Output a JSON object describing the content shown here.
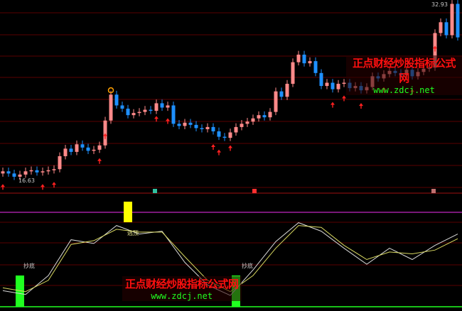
{
  "colors": {
    "up": "#ff8a8a",
    "down": "#1e90ff",
    "grid": "#5a0000",
    "separator": "#a01010",
    "purple": "#a020a0",
    "green": "#20ff20",
    "yellow": "#ffff00",
    "line_white": "#d8d8d8",
    "line_yellow": "#d8d860",
    "arrow": "#ff2020"
  },
  "watermark": {
    "title": "正点财经炒股指标公式网",
    "url": "www.zdcj.net"
  },
  "chart_data": [
    {
      "type": "candlestick",
      "price_labels": {
        "high": "32.93",
        "low": "16.63"
      },
      "ylim": [
        16.63,
        32.93
      ],
      "closes": [
        17.4,
        17.2,
        16.9,
        17.1,
        17.4,
        17.5,
        17.3,
        17.4,
        17.5,
        17.6,
        18.8,
        19.5,
        19.2,
        19.9,
        19.6,
        19.3,
        19.4,
        19.8,
        22.1,
        24.5,
        23.5,
        23.2,
        22.6,
        22.8,
        22.9,
        23.1,
        23.0,
        23.7,
        23.3,
        23.5,
        21.8,
        21.6,
        21.9,
        21.7,
        21.4,
        21.3,
        21.5,
        21.1,
        20.6,
        20.5,
        21.0,
        21.5,
        21.8,
        22.0,
        22.3,
        22.6,
        22.4,
        22.9,
        24.8,
        24.3,
        25.5,
        27.5,
        28.2,
        27.4,
        27.6,
        26.5,
        25.3,
        25.6,
        25.0,
        25.5,
        25.6,
        25.1,
        25.3,
        24.9,
        25.2,
        26.2,
        26.0,
        26.4,
        26.7,
        26.5,
        26.3,
        26.8,
        26.2,
        26.6,
        26.9,
        27.0,
        30.2,
        31.2,
        30.0,
        32.9,
        29.8
      ],
      "buy_arrows_at": [
        0,
        7,
        9,
        17,
        18,
        27,
        29,
        37,
        38,
        40,
        58,
        60,
        63,
        67,
        72,
        76
      ]
    },
    {
      "type": "line",
      "ylim": [
        0,
        100
      ],
      "x_bar_index": [
        0,
        4,
        8,
        12,
        16,
        20,
        24,
        28,
        32,
        36,
        40,
        44,
        48,
        52,
        56,
        60,
        64,
        68,
        72,
        76,
        80
      ],
      "series": [
        {
          "values": [
            17,
            13,
            33,
            71,
            67,
            86,
            77,
            80,
            47,
            23,
            12,
            39,
            69,
            89,
            80,
            62,
            45,
            62,
            50,
            65,
            77
          ]
        },
        {
          "values": [
            20,
            16,
            28,
            66,
            70,
            82,
            79,
            79,
            53,
            28,
            16,
            33,
            62,
            86,
            84,
            65,
            50,
            58,
            56,
            60,
            72
          ]
        }
      ],
      "signals": [
        {
          "label": "抄底",
          "bar": 3,
          "kind": "buy"
        },
        {
          "label": "逃顶",
          "bar": 22,
          "kind": "sell"
        },
        {
          "label": "抄底",
          "bar": 41,
          "kind": "buy"
        }
      ]
    }
  ]
}
